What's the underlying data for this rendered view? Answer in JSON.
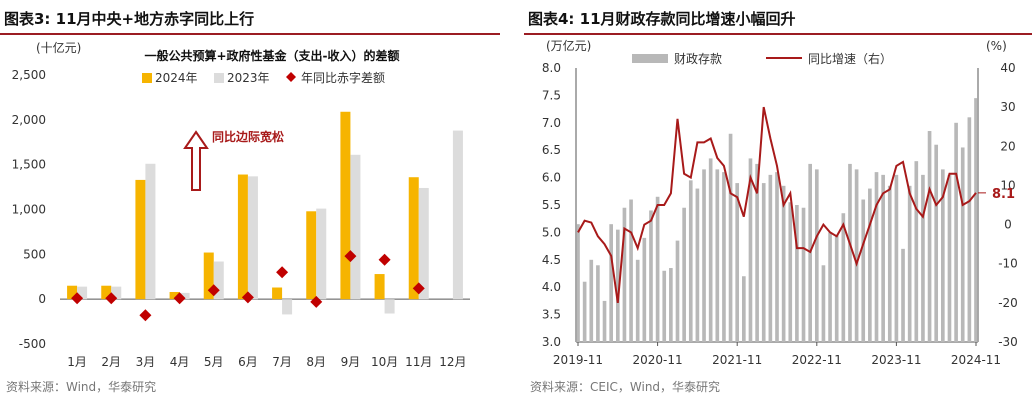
{
  "chart_data": [
    {
      "type": "bar",
      "panel_title": "图表3:  11月中央+地方赤字同比上行",
      "title": "一般公共预算+政府性基金（支出-收入）的差额",
      "ylabel": "(十亿元)",
      "ylim": [
        -500,
        2500
      ],
      "yticks": [
        "2,500",
        "2,000",
        "1,500",
        "1,000",
        "500",
        "0",
        "-500"
      ],
      "ytick_values": [
        2500,
        2000,
        1500,
        1000,
        500,
        0,
        -500
      ],
      "categories": [
        "1月",
        "2月",
        "3月",
        "4月",
        "5月",
        "6月",
        "7月",
        "8月",
        "9月",
        "10月",
        "11月",
        "12月"
      ],
      "series": [
        {
          "name": "2024年",
          "type": "bar",
          "color": "#f6b400",
          "values": [
            150,
            150,
            1330,
            80,
            520,
            1390,
            130,
            980,
            2090,
            280,
            1360,
            null
          ]
        },
        {
          "name": "2023年",
          "type": "bar",
          "color": "#dcdcdc",
          "values": [
            140,
            140,
            1510,
            70,
            420,
            1370,
            -170,
            1010,
            1610,
            -160,
            1240,
            1880
          ]
        },
        {
          "name": "年同比赤字差额",
          "type": "scatter",
          "marker": "diamond",
          "color": "#c00000",
          "values": [
            10,
            10,
            -180,
            10,
            100,
            20,
            300,
            -30,
            480,
            440,
            120,
            null
          ]
        }
      ],
      "annotation": "同比边际宽松",
      "grid": false,
      "legend_position": "top-center"
    },
    {
      "type": "bar+line",
      "panel_title": "图表4:  11月财政存款同比增速小幅回升",
      "ylabel_left": "(万亿元)",
      "ylabel_right": "(%)",
      "ylim_left": [
        3.0,
        8.0
      ],
      "ylim_right": [
        -30,
        40
      ],
      "yticks_left": [
        "8.0",
        "7.5",
        "7.0",
        "6.5",
        "6.0",
        "5.5",
        "5.0",
        "4.5",
        "4.0",
        "3.5",
        "3.0"
      ],
      "yticks_right": [
        "40",
        "30",
        "20",
        "10",
        "0",
        "-10",
        "-20",
        "-30"
      ],
      "x_tick_labels": [
        "2019-11",
        "2020-11",
        "2021-11",
        "2022-11",
        "2023-11",
        "2024-11"
      ],
      "x": [
        "2019-11",
        "2019-12",
        "2020-01",
        "2020-02",
        "2020-03",
        "2020-04",
        "2020-05",
        "2020-06",
        "2020-07",
        "2020-08",
        "2020-09",
        "2020-10",
        "2020-11",
        "2020-12",
        "2021-01",
        "2021-02",
        "2021-03",
        "2021-04",
        "2021-05",
        "2021-06",
        "2021-07",
        "2021-08",
        "2021-09",
        "2021-10",
        "2021-11",
        "2021-12",
        "2022-01",
        "2022-02",
        "2022-03",
        "2022-04",
        "2022-05",
        "2022-06",
        "2022-07",
        "2022-08",
        "2022-09",
        "2022-10",
        "2022-11",
        "2022-12",
        "2023-01",
        "2023-02",
        "2023-03",
        "2023-04",
        "2023-05",
        "2023-06",
        "2023-07",
        "2023-08",
        "2023-09",
        "2023-10",
        "2023-11",
        "2023-12",
        "2024-01",
        "2024-02",
        "2024-03",
        "2024-04",
        "2024-05",
        "2024-06",
        "2024-07",
        "2024-08",
        "2024-09",
        "2024-10",
        "2024-11"
      ],
      "series": [
        {
          "name": "财政存款",
          "type": "bar",
          "axis": "left",
          "color": "#b8b8b8",
          "values": [
            5.15,
            4.1,
            4.5,
            4.4,
            3.75,
            5.15,
            5.05,
            5.45,
            5.6,
            4.5,
            4.9,
            5.4,
            5.65,
            4.3,
            4.35,
            4.85,
            5.45,
            5.95,
            5.8,
            6.15,
            6.35,
            6.15,
            6.1,
            6.8,
            5.9,
            4.2,
            6.35,
            6.25,
            5.9,
            6.05,
            6.1,
            5.85,
            5.55,
            5.5,
            5.45,
            6.25,
            6.15,
            4.4,
            5.0,
            4.95,
            5.35,
            6.25,
            6.15,
            5.6,
            5.8,
            6.1,
            6.05,
            5.85,
            6.05,
            4.7,
            5.85,
            6.3,
            6.05,
            6.85,
            6.6,
            6.15,
            6.05,
            7.0,
            6.55,
            7.1,
            7.45
          ]
        },
        {
          "name": "同比增速（右）",
          "type": "line",
          "axis": "right",
          "color": "#a81a1a",
          "values": [
            -2,
            1,
            0.5,
            -3,
            -5,
            -8,
            -20,
            -1,
            -2,
            -6,
            0,
            1,
            5,
            5,
            8,
            27,
            13,
            12,
            21,
            21,
            22,
            17,
            15,
            8,
            7,
            2,
            12,
            8,
            30,
            22,
            15,
            5,
            8,
            -6,
            -6,
            -7,
            -3,
            0,
            -2,
            -3,
            0,
            -5,
            -10,
            -5,
            0,
            5,
            8,
            9,
            15,
            16,
            8,
            4,
            2,
            9,
            5,
            7,
            13,
            13,
            5,
            6,
            8.1
          ]
        }
      ],
      "last_value_label": "8.1",
      "grid": false,
      "legend_position": "top"
    }
  ],
  "sources": {
    "left": "资料来源：Wind，华泰研究",
    "right": "资料来源：CEIC，Wind，华泰研究"
  }
}
